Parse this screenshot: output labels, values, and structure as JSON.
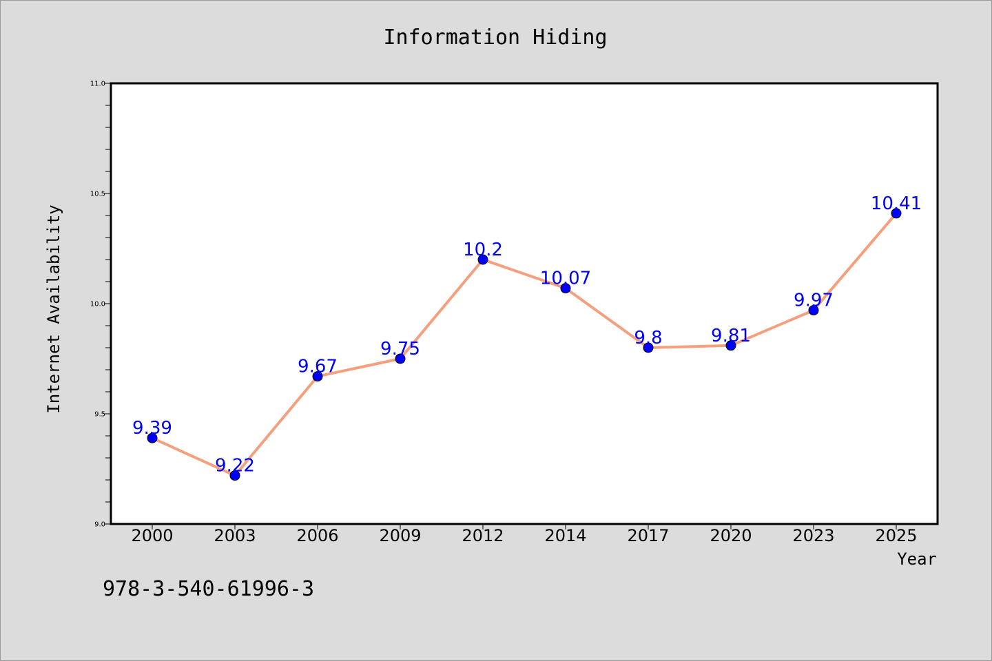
{
  "colors": {
    "background": "#dcdcdc",
    "plot_background": "#ffffff",
    "line": "#f4a07e",
    "marker": "#0000ff",
    "data_label": "#0000ff"
  },
  "note": "978-3-540-61996-3",
  "chart_data": {
    "type": "line",
    "title": "Information Hiding",
    "xlabel": "Year",
    "ylabel": "Internet Availability",
    "categories": [
      "2000",
      "2003",
      "2006",
      "2009",
      "2012",
      "2014",
      "2017",
      "2020",
      "2023",
      "2025"
    ],
    "series": [
      {
        "values": [
          9.39,
          9.22,
          9.67,
          9.75,
          10.2,
          10.07,
          9.8,
          9.81,
          9.97,
          10.41
        ],
        "labels": [
          "9.39",
          "9.22",
          "9.67",
          "9.75",
          "10.2",
          "10.07",
          "9.8",
          "9.81",
          "9.97",
          "10.41"
        ]
      }
    ],
    "ylim": [
      9.0,
      11.0
    ],
    "yticks": [
      "9.0",
      "9.5",
      "10.0",
      "10.5",
      "11.0"
    ],
    "ytick_values": [
      9.0,
      9.5,
      10.0,
      10.5,
      11.0
    ],
    "grid": false,
    "legend": "none",
    "markers": "circle",
    "data_labels": true
  }
}
